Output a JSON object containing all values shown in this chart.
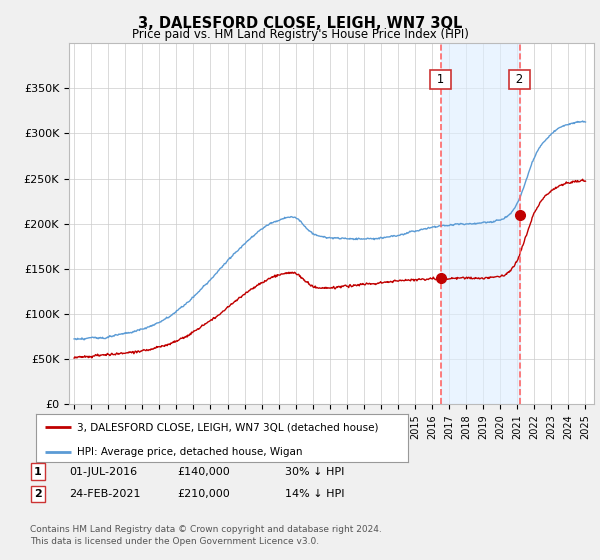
{
  "title": "3, DALESFORD CLOSE, LEIGH, WN7 3QL",
  "subtitle": "Price paid vs. HM Land Registry's House Price Index (HPI)",
  "hpi_color": "#5B9BD5",
  "price_color": "#C00000",
  "vline_color": "#FF6666",
  "shade_color": "#DDEEFF",
  "marker1_date_x": 2016.5,
  "marker2_date_x": 2021.15,
  "marker1_y": 140000,
  "marker2_y": 210000,
  "ylim": [
    0,
    400000
  ],
  "yticks": [
    0,
    50000,
    100000,
    150000,
    200000,
    250000,
    300000,
    350000
  ],
  "ytick_labels": [
    "£0",
    "£50K",
    "£100K",
    "£150K",
    "£200K",
    "£250K",
    "£300K",
    "£350K"
  ],
  "xlim": [
    1994.7,
    2025.5
  ],
  "legend_label_red": "3, DALESFORD CLOSE, LEIGH, WN7 3QL (detached house)",
  "legend_label_blue": "HPI: Average price, detached house, Wigan",
  "annotation1_label": "1",
  "annotation1_date": "01-JUL-2016",
  "annotation1_price": "£140,000",
  "annotation1_pct": "30% ↓ HPI",
  "annotation2_label": "2",
  "annotation2_date": "24-FEB-2021",
  "annotation2_price": "£210,000",
  "annotation2_pct": "14% ↓ HPI",
  "footer": "Contains HM Land Registry data © Crown copyright and database right 2024.\nThis data is licensed under the Open Government Licence v3.0.",
  "fig_bg": "#F0F0F0",
  "chart_bg": "white"
}
